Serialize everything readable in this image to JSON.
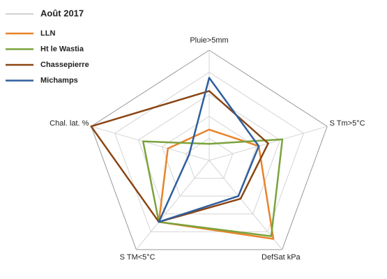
{
  "chart_data": {
    "type": "radar",
    "legend_title": "Août 2017",
    "legend_title_color": "#d0d0d0",
    "axes": [
      "Pluie>5mm",
      "S Tm>5°C",
      "DefSat kPa",
      "S TM<5°C",
      "Chal. lat. %"
    ],
    "rlim": [
      0,
      1
    ],
    "rticks": [
      0.2,
      0.4,
      0.6,
      0.8,
      1.0
    ],
    "grid": true,
    "legend": "upper left",
    "series": [
      {
        "name": "LLN",
        "color": "#e8832a",
        "values": [
          0.28,
          0.42,
          0.88,
          0.69,
          0.35
        ]
      },
      {
        "name": "Ht le Wastia",
        "color": "#7aa33c",
        "values": [
          0.15,
          0.62,
          0.85,
          0.69,
          0.56
        ]
      },
      {
        "name": "Chassepierre",
        "color": "#8b4513",
        "values": [
          0.63,
          0.5,
          0.43,
          0.69,
          1.0
        ]
      },
      {
        "name": "Michamps",
        "color": "#2e5e9e",
        "values": [
          0.75,
          0.42,
          0.4,
          0.69,
          0.17
        ]
      }
    ]
  }
}
